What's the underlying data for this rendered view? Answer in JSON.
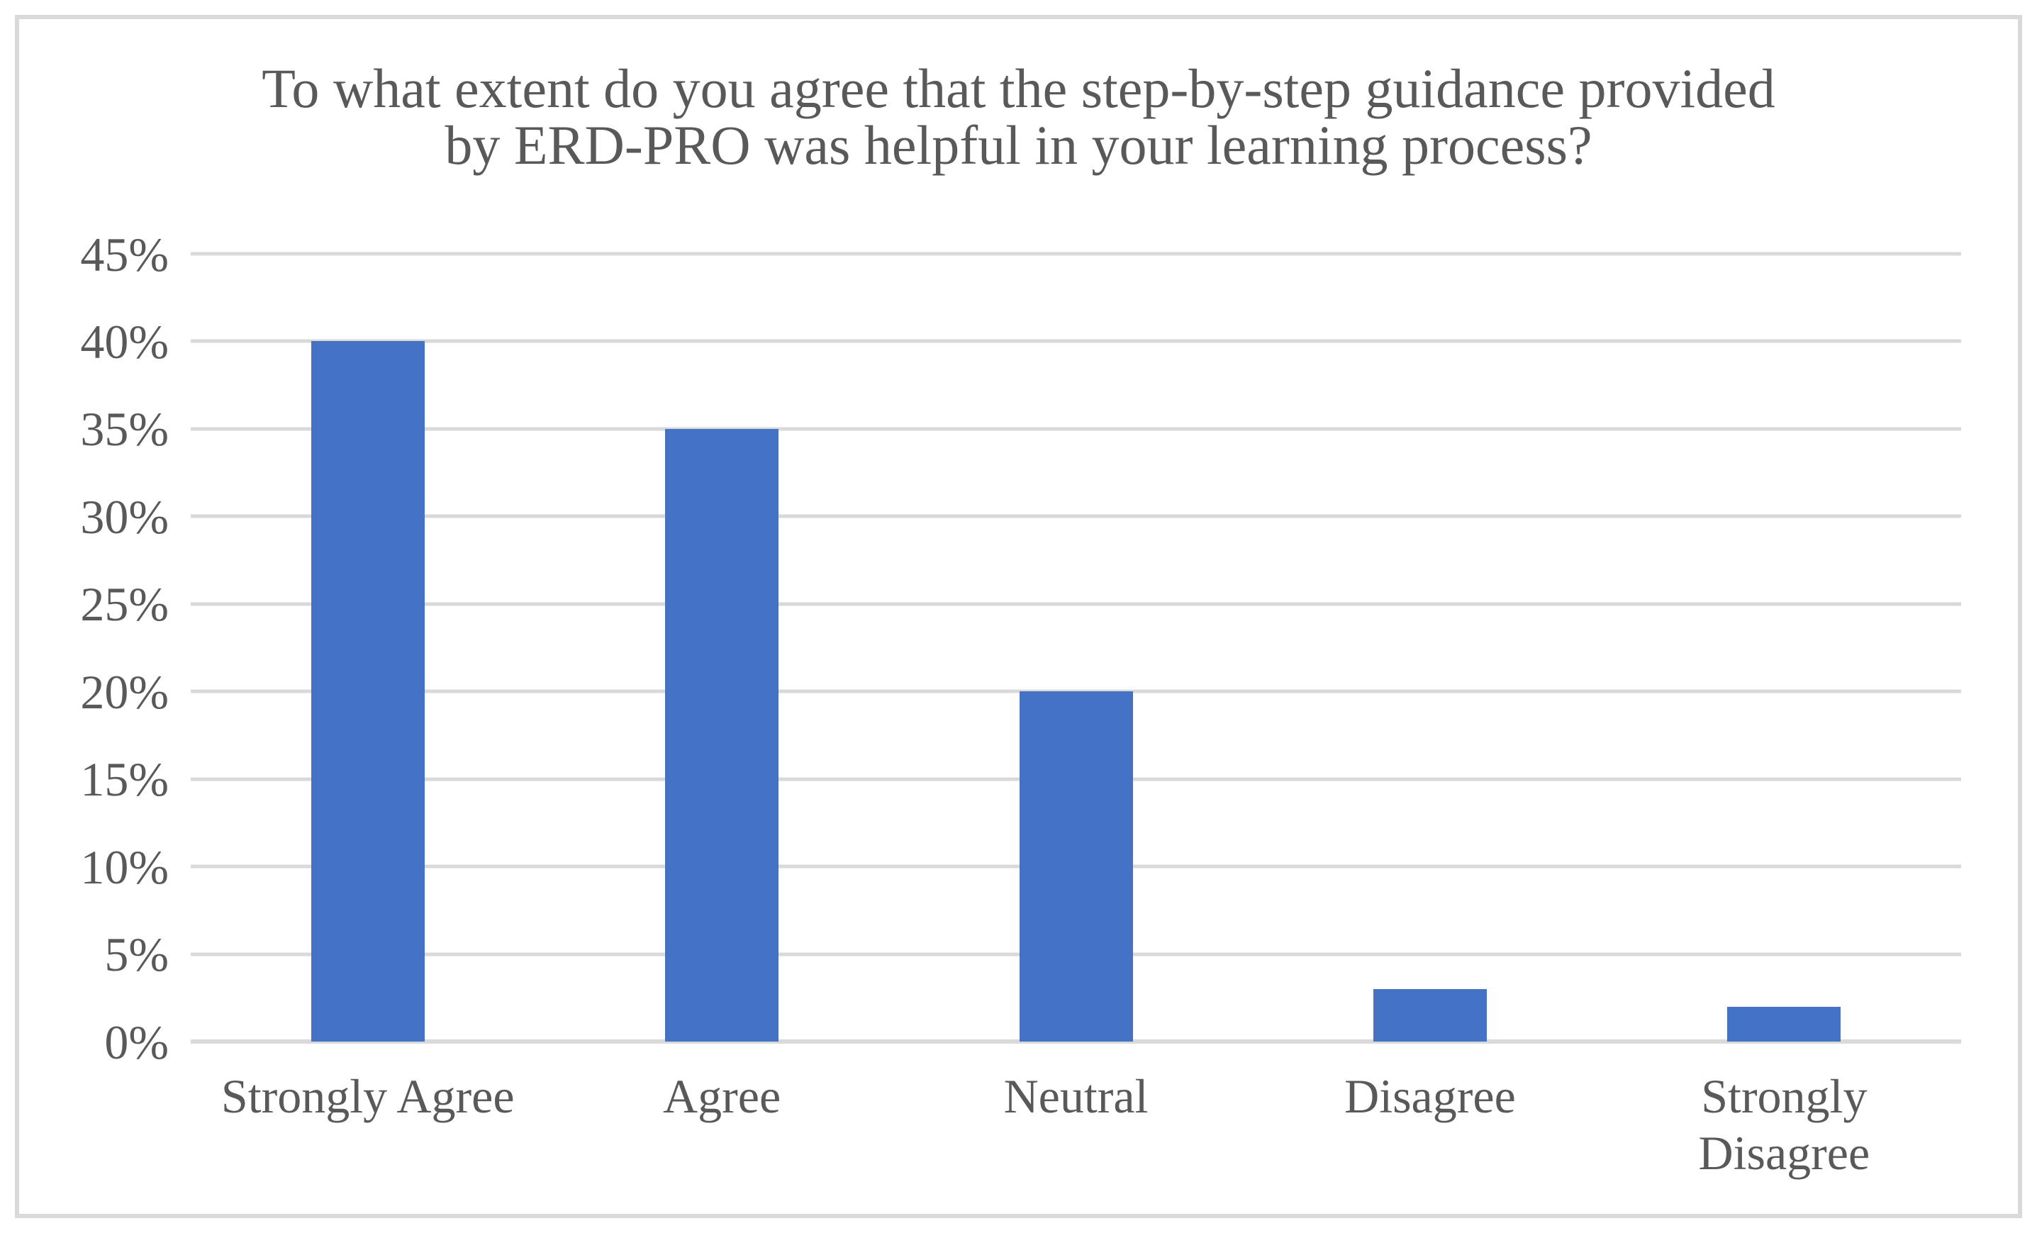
{
  "chart_data": {
    "type": "bar",
    "title": "To what extent do you agree that the step-by-step guidance provided by ERD-PRO was helpful in your learning process?",
    "title_lines": [
      "To what extent do you agree that the step-by-step guidance provided",
      "by ERD-PRO was helpful in your learning process?"
    ],
    "categories": [
      "Strongly Agree",
      "Agree",
      "Neutral",
      "Disagree",
      "Strongly Disagree"
    ],
    "display_labels": [
      "Strongly Agree",
      "Agree",
      "Neutral",
      "Disagree",
      "Strongly\nDisagree"
    ],
    "values": [
      40,
      35,
      20,
      3,
      2
    ],
    "value_unit": "%",
    "xlabel": "",
    "ylabel": "",
    "ylim": [
      0,
      45
    ],
    "ytick_step": 5,
    "yticks": [
      "0%",
      "5%",
      "10%",
      "15%",
      "20%",
      "25%",
      "30%",
      "35%",
      "40%",
      "45%"
    ],
    "grid": true,
    "legend_position": "none",
    "colors": {
      "bar": "#4472C4",
      "gridline": "#D9D9D9",
      "text": "#595959",
      "border": "#D9D9D9",
      "background": "#FFFFFF"
    }
  }
}
